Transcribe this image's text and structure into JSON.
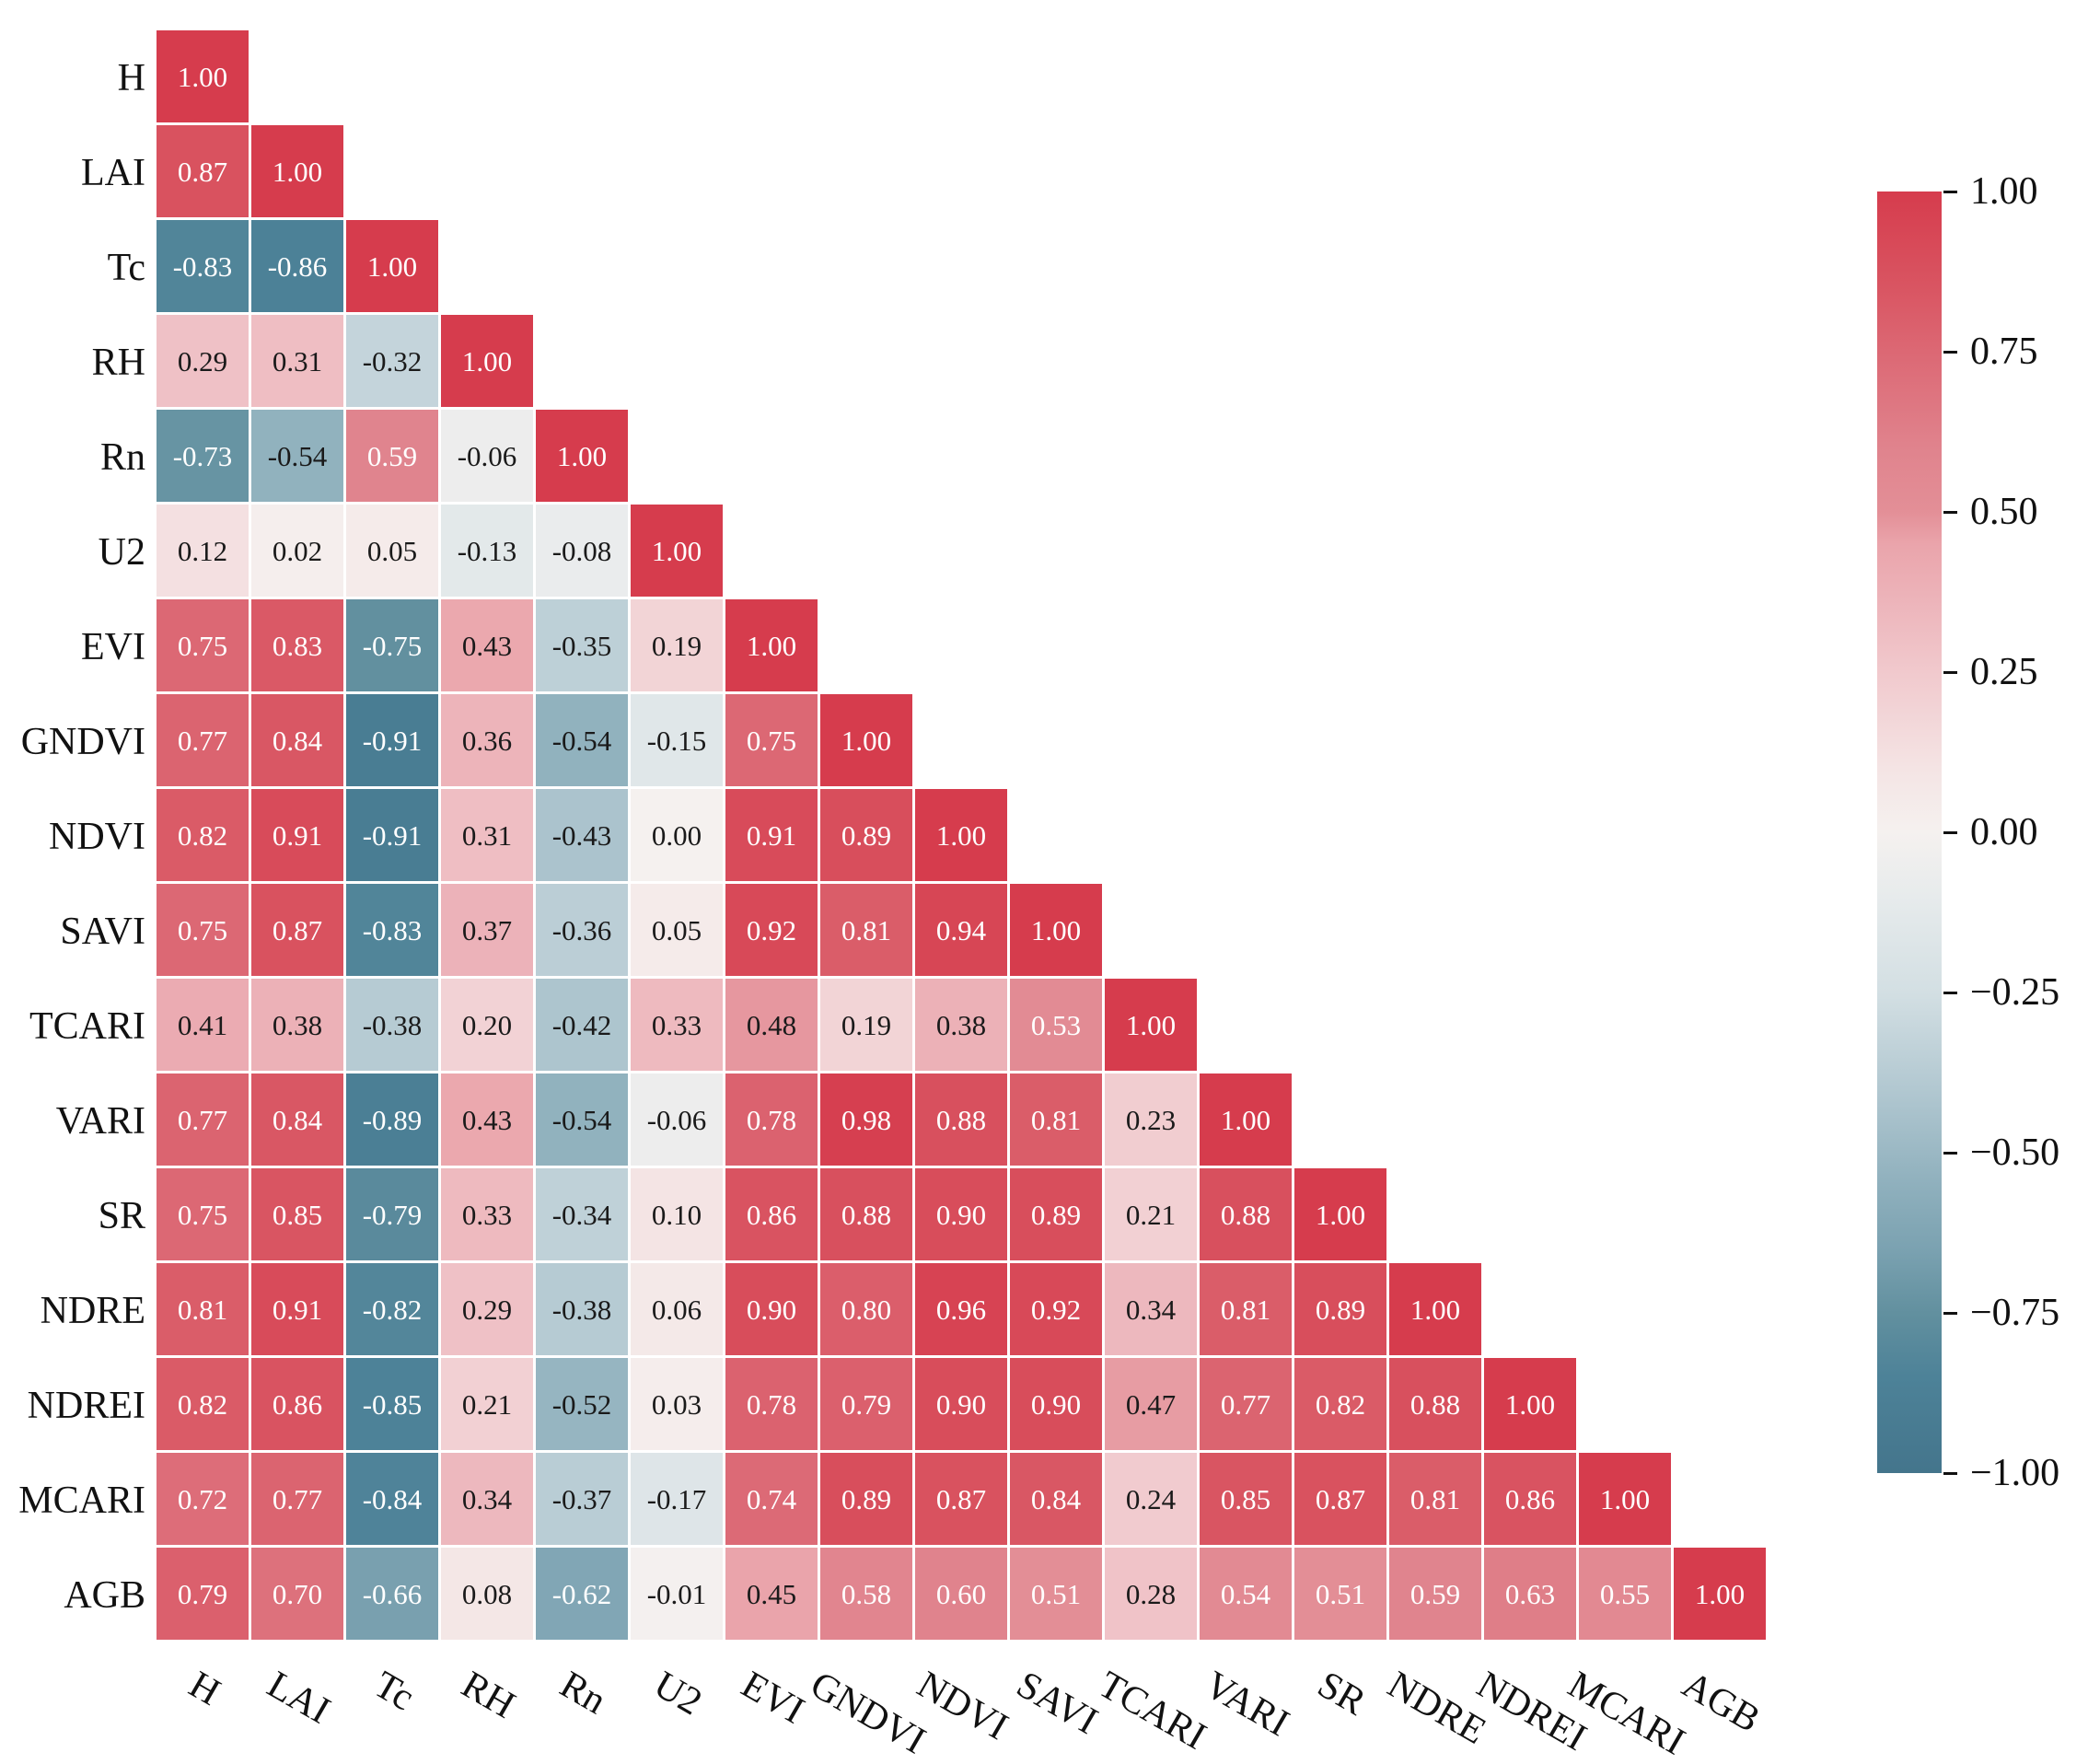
{
  "chart_data": {
    "type": "heatmap",
    "subtype": "correlation-matrix-lower-triangle",
    "title": "",
    "categories": [
      "H",
      "LAI",
      "Tc",
      "RH",
      "Rn",
      "U2",
      "EVI",
      "GNDVI",
      "NDVI",
      "SAVI",
      "TCARI",
      "VARI",
      "SR",
      "NDRE",
      "NDREI",
      "MCARI",
      "AGB"
    ],
    "matrix_lower_triangle": [
      [
        1.0
      ],
      [
        0.87,
        1.0
      ],
      [
        -0.83,
        -0.86,
        1.0
      ],
      [
        0.29,
        0.31,
        -0.32,
        1.0
      ],
      [
        -0.73,
        -0.54,
        0.59,
        -0.06,
        1.0
      ],
      [
        0.12,
        0.02,
        0.05,
        -0.13,
        -0.08,
        1.0
      ],
      [
        0.75,
        0.83,
        -0.75,
        0.43,
        -0.35,
        0.19,
        1.0
      ],
      [
        0.77,
        0.84,
        -0.91,
        0.36,
        -0.54,
        -0.15,
        0.75,
        1.0
      ],
      [
        0.82,
        0.91,
        -0.91,
        0.31,
        -0.43,
        0.0,
        0.91,
        0.89,
        1.0
      ],
      [
        0.75,
        0.87,
        -0.83,
        0.37,
        -0.36,
        0.05,
        0.92,
        0.81,
        0.94,
        1.0
      ],
      [
        0.41,
        0.38,
        -0.38,
        0.2,
        -0.42,
        0.33,
        0.48,
        0.19,
        0.38,
        0.53,
        1.0
      ],
      [
        0.77,
        0.84,
        -0.89,
        0.43,
        -0.54,
        -0.06,
        0.78,
        0.98,
        0.88,
        0.81,
        0.23,
        1.0
      ],
      [
        0.75,
        0.85,
        -0.79,
        0.33,
        -0.34,
        0.1,
        0.86,
        0.88,
        0.9,
        0.89,
        0.21,
        0.88,
        1.0
      ],
      [
        0.81,
        0.91,
        -0.82,
        0.29,
        -0.38,
        0.06,
        0.9,
        0.8,
        0.96,
        0.92,
        0.34,
        0.81,
        0.89,
        1.0
      ],
      [
        0.82,
        0.86,
        -0.85,
        0.21,
        -0.52,
        0.03,
        0.78,
        0.79,
        0.9,
        0.9,
        0.47,
        0.77,
        0.82,
        0.88,
        1.0
      ],
      [
        0.72,
        0.77,
        -0.84,
        0.34,
        -0.37,
        -0.17,
        0.74,
        0.89,
        0.87,
        0.84,
        0.24,
        0.85,
        0.87,
        0.81,
        0.86,
        1.0
      ],
      [
        0.79,
        0.7,
        -0.66,
        0.08,
        -0.62,
        -0.01,
        0.45,
        0.58,
        0.6,
        0.51,
        0.28,
        0.54,
        0.51,
        0.59,
        0.63,
        0.55,
        1.0
      ]
    ],
    "annotation_decimals": 2,
    "vmin": -1,
    "vmax": 1,
    "grid": true,
    "gridline_color": "#ffffff",
    "legend_position": "right",
    "colorbar_tick_labels": [
      "1.00",
      "0.75",
      "0.50",
      "0.25",
      "0.00",
      "−0.25",
      "−0.50",
      "−0.75",
      "−1.00"
    ],
    "colorbar_tick_values": [
      1.0,
      0.75,
      0.5,
      0.25,
      0.0,
      -0.25,
      -0.5,
      -0.75,
      -1.0
    ],
    "colors": {
      "max_positive": "#d63c4d",
      "center": "#f5f1ef",
      "max_negative": "#44758c",
      "annotation_light": "#ffffff",
      "annotation_dark": "#1a1a1a",
      "axis_text": "#111111"
    },
    "colormap_anchors": [
      [
        1.0,
        "#d63c4d"
      ],
      [
        0.85,
        "#d95562"
      ],
      [
        0.75,
        "#dc6874"
      ],
      [
        0.6,
        "#e0838d"
      ],
      [
        0.5,
        "#e38f97"
      ],
      [
        0.45,
        "#eaa4ab"
      ],
      [
        0.35,
        "#edb6bc"
      ],
      [
        0.25,
        "#f1c9cd"
      ],
      [
        0.1,
        "#f4e4e4"
      ],
      [
        0.0,
        "#f5f1ef"
      ],
      [
        -0.1,
        "#e7ebec"
      ],
      [
        -0.25,
        "#d3dfe3"
      ],
      [
        -0.4,
        "#b2c8d1"
      ],
      [
        -0.55,
        "#8fb0bd"
      ],
      [
        -0.65,
        "#7ba2b1"
      ],
      [
        -0.75,
        "#62909f"
      ],
      [
        -0.85,
        "#4d8298"
      ],
      [
        -1.0,
        "#44758c"
      ]
    ]
  }
}
